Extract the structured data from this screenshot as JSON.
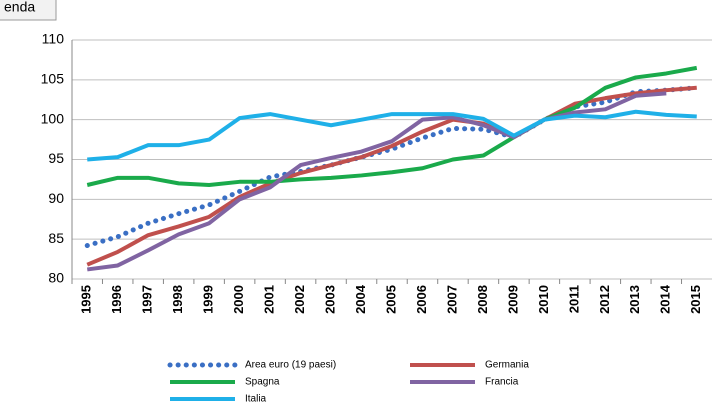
{
  "tab_label": "enda",
  "chart_data": {
    "type": "line",
    "categories": [
      "1995",
      "1996",
      "1997",
      "1998",
      "1999",
      "2000",
      "2001",
      "2002",
      "2003",
      "2004",
      "2005",
      "2006",
      "2007",
      "2008",
      "2009",
      "2010",
      "2011",
      "2012",
      "2013",
      "2014",
      "2015"
    ],
    "series": [
      {
        "name": "Area euro (19 paesi)",
        "color": "#3a6fc4",
        "style": "dotted",
        "values": [
          84.2,
          85.3,
          87,
          88.2,
          89.3,
          91,
          92.8,
          93.5,
          94.3,
          95.3,
          96.3,
          97.7,
          98.9,
          98.8,
          97.8,
          100,
          101.6,
          102.2,
          103.5,
          103.7,
          104
        ]
      },
      {
        "name": "Germania",
        "color": "#c0504d",
        "style": "solid",
        "values": [
          81.8,
          83.4,
          85.5,
          86.6,
          87.8,
          90.3,
          92,
          93.3,
          94.3,
          95.3,
          96.7,
          98.5,
          100,
          99.5,
          97.8,
          100,
          102,
          102.7,
          103.3,
          103.7,
          104
        ]
      },
      {
        "name": "Spagna",
        "color": "#1aaa4b",
        "style": "solid",
        "values": [
          91.8,
          92.7,
          92.7,
          92,
          91.8,
          92.2,
          92.2,
          92.5,
          92.7,
          93,
          93.4,
          93.9,
          95,
          95.5,
          97.8,
          100,
          101.5,
          104,
          105.3,
          105.8,
          106.5
        ]
      },
      {
        "name": "Francia",
        "color": "#8064a2",
        "style": "solid",
        "values": [
          81.2,
          81.7,
          83.6,
          85.6,
          87,
          90,
          91.5,
          94.3,
          95.2,
          96,
          97.3,
          100,
          100.3,
          99.3,
          97.8,
          100,
          100.9,
          101.3,
          103,
          103.3,
          null
        ]
      },
      {
        "name": "Italia",
        "color": "#1fb0e8",
        "style": "solid",
        "values": [
          95,
          95.3,
          96.8,
          96.8,
          97.5,
          100.2,
          100.7,
          100,
          99.3,
          100,
          100.7,
          100.7,
          100.7,
          100.1,
          98,
          100,
          100.5,
          100.3,
          101,
          100.6,
          100.4
        ]
      }
    ],
    "ylim": [
      80,
      110
    ],
    "yticks": [
      80,
      85,
      90,
      95,
      100,
      105,
      110
    ],
    "grid": true
  }
}
